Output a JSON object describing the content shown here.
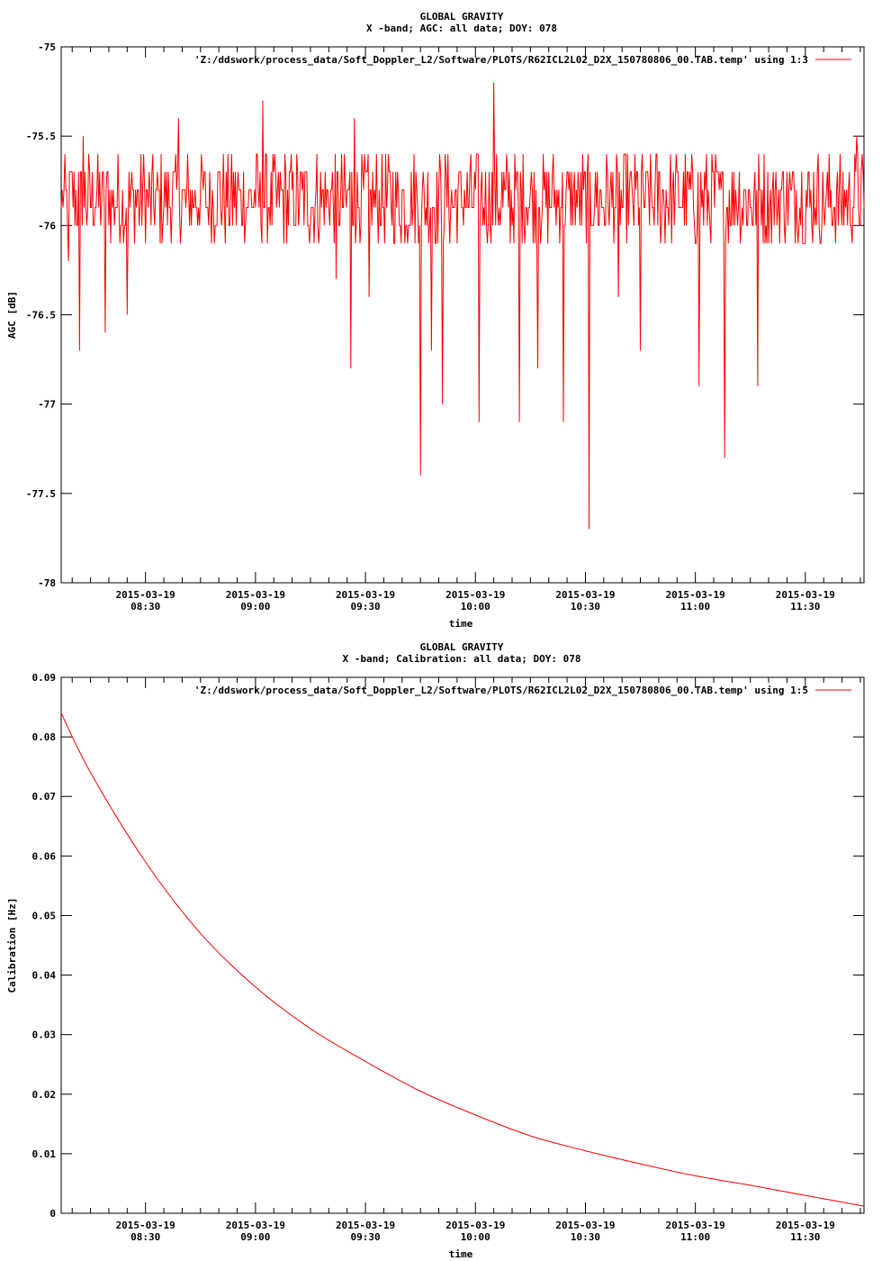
{
  "chart_data": [
    {
      "type": "line",
      "title": "GLOBAL GRAVITY",
      "subtitle": "X -band; AGC: all data; DOY: 078",
      "xlabel": "time",
      "ylabel": "AGC [dB]",
      "ylim": [
        -78,
        -75
      ],
      "yticks": [
        "-75",
        "-75.5",
        "-76",
        "-76.5",
        "-77",
        "-77.5",
        "-78"
      ],
      "ytick_values": [
        -75,
        -75.5,
        -76,
        -76.5,
        -77,
        -77.5,
        -78
      ],
      "xlim": [
        "2015-03-19 08:07",
        "2015-03-19 11:46"
      ],
      "xtick_dates": [
        "2015-03-19",
        "2015-03-19",
        "2015-03-19",
        "2015-03-19",
        "2015-03-19",
        "2015-03-19",
        "2015-03-19"
      ],
      "xtick_times": [
        "08:30",
        "09:00",
        "09:30",
        "10:00",
        "10:30",
        "11:00",
        "11:30"
      ],
      "grid": false,
      "legend_position": "top-right",
      "series": [
        {
          "name": "'Z:/ddswork/process_data/Soft_Doppler_L2/Software/PLOTS/R62ICL2L02_D2X_150780806_00.TAB.temp' using 1:3",
          "color": "#ff0000",
          "noise_range": [
            -76.1,
            -75.6
          ],
          "points": [
            {
              "x": "08:07",
              "y": -75.9
            },
            {
              "x": "08:09",
              "y": -76.2
            },
            {
              "x": "08:12",
              "y": -76.7
            },
            {
              "x": "08:13",
              "y": -75.5
            },
            {
              "x": "08:19",
              "y": -76.6
            },
            {
              "x": "08:25",
              "y": -76.5
            },
            {
              "x": "08:39",
              "y": -75.4
            },
            {
              "x": "09:02",
              "y": -75.3
            },
            {
              "x": "09:22",
              "y": -76.3
            },
            {
              "x": "09:26",
              "y": -76.8
            },
            {
              "x": "09:27",
              "y": -75.4
            },
            {
              "x": "09:31",
              "y": -76.4
            },
            {
              "x": "09:45",
              "y": -77.4
            },
            {
              "x": "09:48",
              "y": -76.7
            },
            {
              "x": "09:51",
              "y": -77.0
            },
            {
              "x": "10:01",
              "y": -77.1
            },
            {
              "x": "10:05",
              "y": -75.2
            },
            {
              "x": "10:12",
              "y": -77.1
            },
            {
              "x": "10:17",
              "y": -76.8
            },
            {
              "x": "10:24",
              "y": -77.1
            },
            {
              "x": "10:31",
              "y": -77.7
            },
            {
              "x": "10:39",
              "y": -76.4
            },
            {
              "x": "10:45",
              "y": -76.7
            },
            {
              "x": "11:01",
              "y": -76.9
            },
            {
              "x": "11:08",
              "y": -77.3
            },
            {
              "x": "11:17",
              "y": -76.9
            },
            {
              "x": "11:44",
              "y": -75.5
            },
            {
              "x": "11:46",
              "y": -75.9
            }
          ]
        }
      ]
    },
    {
      "type": "line",
      "title": "GLOBAL GRAVITY",
      "subtitle": "X -band; Calibration: all data; DOY: 078",
      "xlabel": "time",
      "ylabel": "Calibration [Hz]",
      "ylim": [
        0,
        0.09
      ],
      "yticks": [
        "0.09",
        "0.08",
        "0.07",
        "0.06",
        "0.05",
        "0.04",
        "0.03",
        "0.02",
        "0.01",
        "0"
      ],
      "ytick_values": [
        0.09,
        0.08,
        0.07,
        0.06,
        0.05,
        0.04,
        0.03,
        0.02,
        0.01,
        0
      ],
      "xlim": [
        "2015-03-19 08:07",
        "2015-03-19 11:46"
      ],
      "xtick_dates": [
        "2015-03-19",
        "2015-03-19",
        "2015-03-19",
        "2015-03-19",
        "2015-03-19",
        "2015-03-19",
        "2015-03-19"
      ],
      "xtick_times": [
        "08:30",
        "09:00",
        "09:30",
        "10:00",
        "10:30",
        "11:00",
        "11:30"
      ],
      "grid": false,
      "legend_position": "top-right",
      "series": [
        {
          "name": "'Z:/ddswork/process_data/Soft_Doppler_L2/Software/PLOTS/R62ICL2L02_D2X_150780806_00.TAB.temp' using 1:5",
          "color": "#ff0000",
          "points": [
            {
              "x": "08:07",
              "y": 0.084
            },
            {
              "x": "08:15",
              "y": 0.074
            },
            {
              "x": "08:30",
              "y": 0.059
            },
            {
              "x": "08:45",
              "y": 0.047
            },
            {
              "x": "09:00",
              "y": 0.038
            },
            {
              "x": "09:15",
              "y": 0.031
            },
            {
              "x": "09:30",
              "y": 0.0255
            },
            {
              "x": "09:45",
              "y": 0.0205
            },
            {
              "x": "10:00",
              "y": 0.0165
            },
            {
              "x": "10:15",
              "y": 0.013
            },
            {
              "x": "10:30",
              "y": 0.0105
            },
            {
              "x": "10:45",
              "y": 0.0083
            },
            {
              "x": "11:00",
              "y": 0.0063
            },
            {
              "x": "11:15",
              "y": 0.0047
            },
            {
              "x": "11:30",
              "y": 0.003
            },
            {
              "x": "11:46",
              "y": 0.0012
            }
          ]
        }
      ]
    }
  ]
}
